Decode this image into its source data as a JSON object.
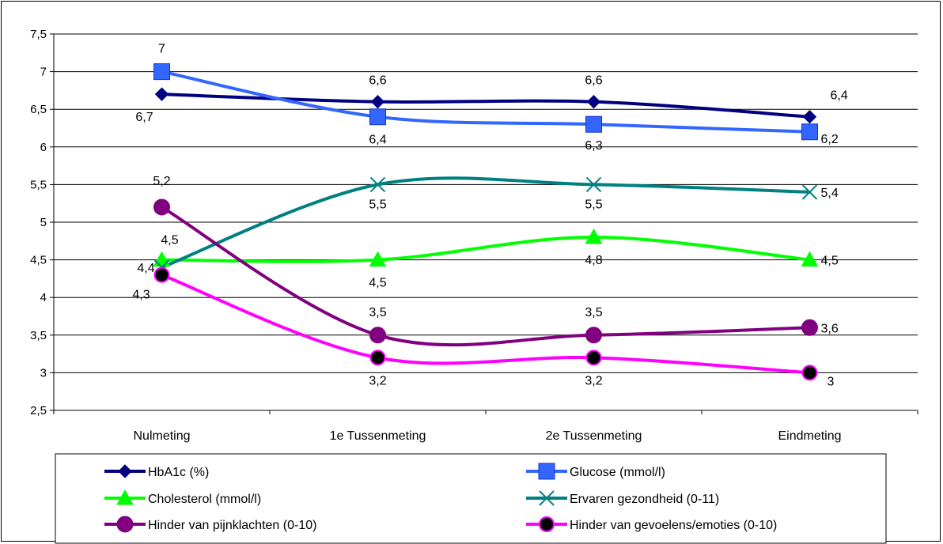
{
  "chart_data": {
    "type": "line",
    "title": "",
    "xlabel": "",
    "ylabel": "",
    "categories": [
      "Nulmeting",
      "1e Tussenmeting",
      "2e Tussenmeting",
      "Eindmeting"
    ],
    "ylim": [
      2.5,
      7.5
    ],
    "yticks": [
      "2,5",
      "3",
      "3,5",
      "4",
      "4,5",
      "5",
      "5,5",
      "6",
      "6,5",
      "7",
      "7,5"
    ],
    "grid": true,
    "legend_position": "bottom",
    "series": [
      {
        "name": "HbA1c (%)",
        "values": [
          6.7,
          6.6,
          6.6,
          6.4
        ],
        "labels": [
          "6,7",
          "6,6",
          "6,6",
          "6,4"
        ],
        "color": "#000080",
        "marker": "diamond-icon"
      },
      {
        "name": "Glucose (mmol/l)",
        "values": [
          7,
          6.4,
          6.3,
          6.2
        ],
        "labels": [
          "7",
          "6,4",
          "6,3",
          "6,2"
        ],
        "color": "#3366FF",
        "marker": "square-icon"
      },
      {
        "name": "Cholesterol (mmol/l)",
        "values": [
          4.5,
          4.5,
          4.8,
          4.5
        ],
        "labels": [
          "4,5",
          "4,5",
          "4,8",
          "4,5"
        ],
        "color": "#00FF00",
        "marker": "triangle-icon"
      },
      {
        "name": "Ervaren gezondheid (0-11)",
        "values": [
          4.4,
          5.5,
          5.5,
          5.4
        ],
        "labels": [
          "4,4",
          "5,5",
          "5,5",
          "5,4"
        ],
        "color": "#008080",
        "marker": "x-icon"
      },
      {
        "name": "Hinder van pijnklachten (0-10)",
        "values": [
          5.2,
          3.5,
          3.5,
          3.6
        ],
        "labels": [
          "5,2",
          "3,5",
          "3,5",
          "3,6"
        ],
        "color": "#800080",
        "marker": "circle-icon"
      },
      {
        "name": "Hinder van gevoelens/emoties (0-10)",
        "values": [
          4.3,
          3.2,
          3.2,
          3
        ],
        "labels": [
          "4,3",
          "3,2",
          "3,2",
          "3"
        ],
        "color": "#FF00FF",
        "marker": "dot-icon"
      }
    ]
  }
}
